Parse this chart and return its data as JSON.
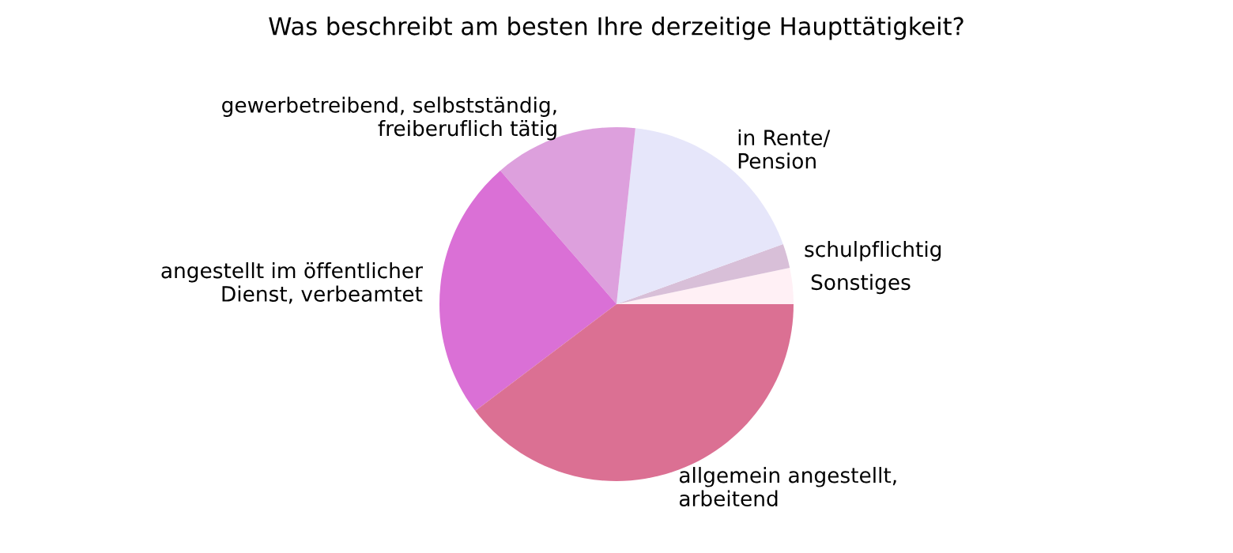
{
  "chart_data": {
    "type": "pie",
    "title": "Was beschreibt am besten Ihre derzeitige Haupttätigkeit?",
    "categories": [
      "Sonstiges",
      "schulpflichtig",
      "in Rente/\nPension",
      "gewerbetreibend, selbstständig,\nfreiberuflich tätig",
      "angestellt im öffentlicher\nDienst, verbeamtet",
      "allgemein angestellt,\narbeitend"
    ],
    "values": [
      3.3,
      2.2,
      17.8,
      13.1,
      23.9,
      39.7
    ],
    "colors": [
      "#fff0f5",
      "#d8bfd8",
      "#e6e6fa",
      "#dda0dd",
      "#da70d6",
      "#db7093"
    ],
    "legend": false
  }
}
